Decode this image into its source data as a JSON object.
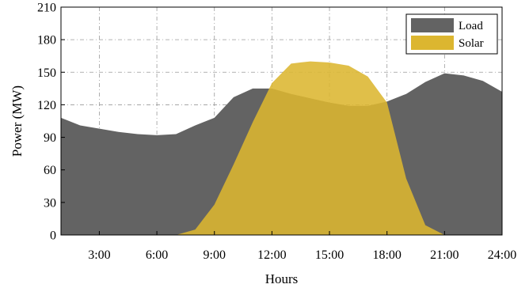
{
  "chart_data": {
    "type": "area",
    "xlabel": "Hours",
    "ylabel": "Power (MW)",
    "xlim": [
      1,
      24
    ],
    "ylim": [
      0,
      210
    ],
    "x_ticks": [
      3,
      6,
      9,
      12,
      15,
      18,
      21,
      24
    ],
    "x_tick_labels": [
      "3:00",
      "6:00",
      "9:00",
      "12:00",
      "15:00",
      "18:00",
      "21:00",
      "24:00"
    ],
    "y_ticks": [
      0,
      30,
      60,
      90,
      120,
      150,
      180,
      210
    ],
    "y_tick_labels": [
      "0",
      "30",
      "60",
      "90",
      "120",
      "150",
      "180",
      "210"
    ],
    "grid": true,
    "legend_position": "top-right",
    "series": [
      {
        "name": "Load",
        "color": "#636363",
        "x": [
          1,
          2,
          3,
          4,
          5,
          6,
          7,
          8,
          9,
          10,
          11,
          12,
          13,
          14,
          15,
          16,
          17,
          18,
          19,
          20,
          21,
          22,
          23,
          24
        ],
        "values": [
          108,
          101,
          98,
          95,
          93,
          92,
          93,
          101,
          108,
          127,
          135,
          135,
          130,
          126,
          122,
          119,
          119,
          123,
          130,
          141,
          149,
          147,
          142,
          132
        ]
      },
      {
        "name": "Solar",
        "color": "#dcb630",
        "x": [
          7,
          8,
          9,
          10,
          11,
          12,
          13,
          14,
          15,
          16,
          17,
          18,
          19,
          20,
          21
        ],
        "values": [
          0,
          5,
          28,
          65,
          104,
          140,
          158,
          160,
          159,
          156,
          146,
          122,
          52,
          9,
          0
        ]
      }
    ]
  }
}
